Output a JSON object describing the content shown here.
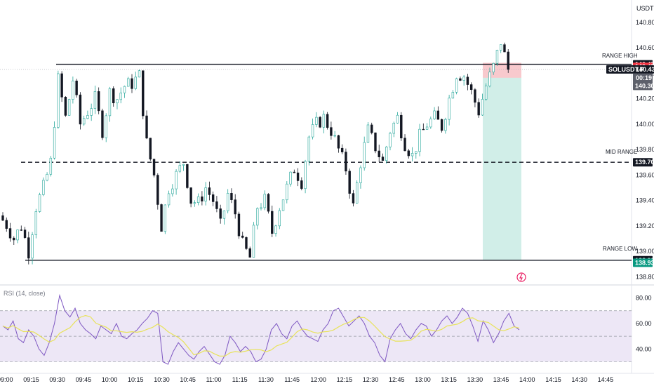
{
  "header": {
    "currency": "USDT"
  },
  "colors": {
    "up": "#26a69a",
    "down": "#131722",
    "rsi_line": "#7e57c2",
    "rsi_ma": "#e8e35a",
    "rsi_band": "#ede7f6",
    "target_zone": "#d1eee8",
    "stop_zone": "#f8c9cd",
    "red_tag": "#f23645",
    "teal_tag": "#089981",
    "dark_tag": "#131722",
    "gray_tag": "#5d606b"
  },
  "chart_data": {
    "type": "candlestick",
    "ylim": [
      138.78,
      140.92
    ],
    "yticks": [
      "140.80",
      "140.60",
      "140.40",
      "140.20",
      "140.00",
      "139.80",
      "139.60",
      "139.40",
      "139.20",
      "139.00",
      "138.80"
    ],
    "xticks": [
      "09:00",
      "09:15",
      "09:30",
      "09:45",
      "10:00",
      "10:15",
      "10:30",
      "10:45",
      "11:00",
      "11:15",
      "11:30",
      "11:45",
      "12:00",
      "12:15",
      "12:30",
      "12:45",
      "13:00",
      "13:15",
      "13:30",
      "13:45",
      "14:00",
      "14:15",
      "14:30",
      "14:45"
    ],
    "close_path": [
      139.28,
      139.21,
      139.1,
      139.2,
      139.0,
      139.35,
      139.5,
      139.7,
      140.35,
      140.05,
      140.35,
      140.0,
      140.1,
      140.2,
      139.95,
      140.25,
      140.2,
      140.3,
      140.32,
      140.38,
      139.85,
      139.6,
      139.2,
      139.5,
      139.6,
      139.7,
      139.4,
      139.38,
      139.5,
      139.4,
      139.2,
      139.45,
      139.3,
      139.05,
      138.95,
      139.35,
      139.4,
      139.15,
      139.35,
      139.5,
      139.65,
      139.55,
      139.9,
      140.0,
      140.05,
      139.95,
      139.8,
      139.65,
      139.35,
      139.7,
      139.95,
      139.82,
      139.7,
      139.95,
      140.05,
      139.85,
      139.75,
      139.9,
      140.0,
      140.05,
      139.98,
      140.2,
      140.4,
      140.38,
      140.25,
      140.1,
      140.3,
      140.45,
      140.65,
      140.43
    ],
    "resistance_lines": [
      {
        "label": "RANGE HIGH",
        "price_tag": "140.47"
      },
      {
        "price_tag": "140.43"
      }
    ],
    "mid_line": {
      "label": "MID RANGE",
      "price_tag": "139.70"
    },
    "support_line": {
      "label": "RANGE LOW",
      "price_tag": "138.93"
    },
    "price_tags": [
      {
        "text": "140.47",
        "kind": "dark_tag",
        "price": 140.47
      },
      {
        "text": "140.45",
        "kind": "red_tag",
        "price": 140.45
      },
      {
        "text": "SOLUSDT.P",
        "kind": "dark_tag",
        "price": 140.43,
        "value": "140.43",
        "countdown": "00:19"
      },
      {
        "text": "140.30",
        "kind": "gray_tag",
        "price": 140.3
      },
      {
        "text": "139.70",
        "kind": "dark_tag",
        "price": 139.7
      },
      {
        "text": "138.93",
        "kind": "dark_tag",
        "price": 138.93
      },
      {
        "text": "138.93",
        "kind": "teal_tag",
        "price": 138.91
      }
    ],
    "position_tool": {
      "entry": 140.43,
      "stop": 140.47,
      "target": 138.93
    },
    "indicator": {
      "name": "RSI (14, close)",
      "levels": [
        70,
        50,
        30
      ],
      "ylim": [
        22,
        88
      ],
      "yticks": [
        "80.00",
        "60.00",
        "40.00"
      ],
      "rsi_values": [
        58,
        55,
        62,
        48,
        45,
        55,
        50,
        40,
        35,
        45,
        60,
        82,
        70,
        65,
        72,
        60,
        55,
        52,
        48,
        58,
        55,
        52,
        60,
        50,
        48,
        52,
        55,
        60,
        64,
        70,
        68,
        30,
        28,
        38,
        45,
        40,
        35,
        32,
        38,
        42,
        36,
        30,
        28,
        35,
        50,
        45,
        38,
        42,
        38,
        30,
        32,
        40,
        55,
        60,
        52,
        48,
        58,
        62,
        55,
        50,
        48,
        46,
        55,
        60,
        70,
        72,
        65,
        58,
        62,
        66,
        60,
        50,
        45,
        35,
        30,
        48,
        55,
        60,
        52,
        48,
        55,
        60,
        58,
        50,
        55,
        62,
        66,
        60,
        65,
        72,
        68,
        58,
        46,
        62,
        55,
        45,
        52,
        62,
        68,
        58,
        55
      ]
    }
  }
}
